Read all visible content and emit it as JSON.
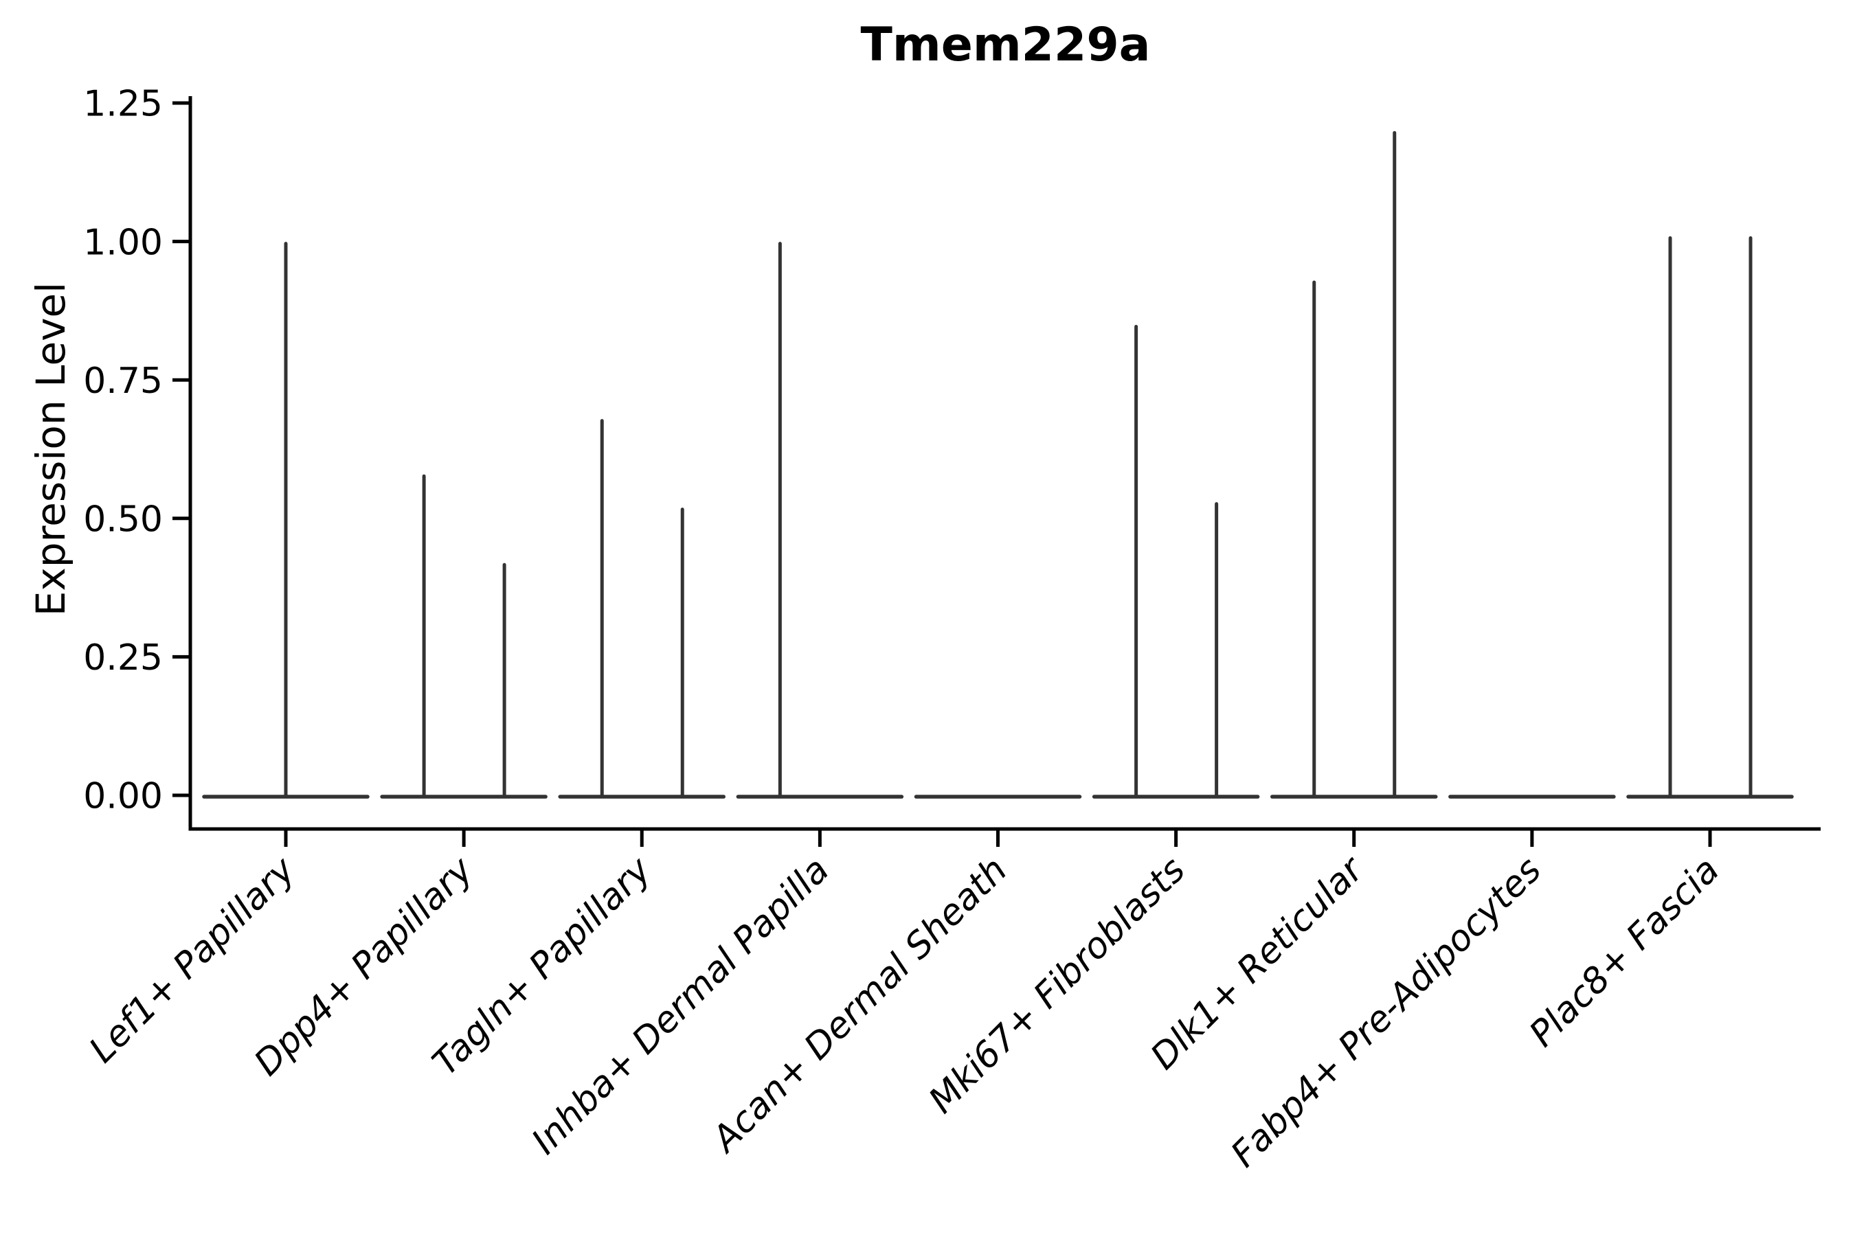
{
  "chart_data": {
    "type": "violin",
    "title": "Tmem229a",
    "ylabel": "Expression Level",
    "ylim": [
      0,
      1.25
    ],
    "yticks": [
      0,
      0.25,
      0.5,
      0.75,
      1.0,
      1.25
    ],
    "ytick_labels": [
      "0.00",
      "0.25",
      "0.50",
      "0.75",
      "1.00",
      "1.25"
    ],
    "grid": false,
    "legend": "none",
    "categories": [
      "Lef1+ Papillary",
      "Dpp4+ Papillary",
      "Tagln+ Papillary",
      "Inhba+ Dermal Papilla",
      "Acan+ Dermal Sheath",
      "Mki67+ Fibroblasts",
      "Dlk1+ Reticular",
      "Fabp4+ Pre-Adipocytes",
      "Plac8+ Fascia"
    ],
    "violins": [
      {
        "category": "Lef1+ Papillary",
        "baseline": 0,
        "spikes": [
          {
            "position": "center",
            "max": 1.0
          }
        ]
      },
      {
        "category": "Dpp4+ Papillary",
        "baseline": 0,
        "spikes": [
          {
            "position": "left",
            "max": 0.58
          },
          {
            "position": "right",
            "max": 0.42
          }
        ]
      },
      {
        "category": "Tagln+ Papillary",
        "baseline": 0,
        "spikes": [
          {
            "position": "left",
            "max": 0.68
          },
          {
            "position": "right",
            "max": 0.52
          }
        ]
      },
      {
        "category": "Inhba+ Dermal Papilla",
        "baseline": 0,
        "spikes": [
          {
            "position": "left",
            "max": 1.0
          }
        ]
      },
      {
        "category": "Acan+ Dermal Sheath",
        "baseline": 0,
        "spikes": []
      },
      {
        "category": "Mki67+ Fibroblasts",
        "baseline": 0,
        "spikes": [
          {
            "position": "left",
            "max": 0.85
          },
          {
            "position": "right",
            "max": 0.53
          }
        ]
      },
      {
        "category": "Dlk1+ Reticular",
        "baseline": 0,
        "spikes": [
          {
            "position": "left",
            "max": 0.93
          },
          {
            "position": "right",
            "max": 1.2
          }
        ]
      },
      {
        "category": "Fabp4+ Pre-Adipocytes",
        "baseline": 0,
        "spikes": []
      },
      {
        "category": "Plac8+ Fascia",
        "baseline": 0,
        "spikes": [
          {
            "position": "left",
            "max": 1.01
          },
          {
            "position": "right",
            "max": 1.01
          }
        ]
      }
    ],
    "colors": {
      "violin_stroke": "#333333",
      "axis": "#000000",
      "text": "#000000"
    }
  }
}
